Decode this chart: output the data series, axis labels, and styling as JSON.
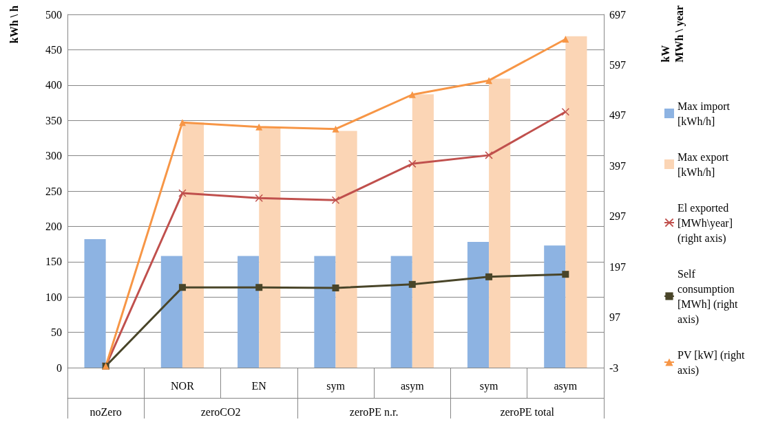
{
  "chart_data": {
    "type": "bar",
    "ylabel": "kWh \\ h",
    "y2label": "kW\nMWh \\ year",
    "categories": [
      null,
      "NOR",
      "EN",
      "sym",
      "asym",
      "sym",
      "asym"
    ],
    "annotations": [
      "noZero",
      "zeroCO2",
      "zeroPE n.r.",
      "zeroPE total"
    ],
    "ylim": [
      0,
      500
    ],
    "yticks": [
      0,
      50,
      100,
      150,
      200,
      250,
      300,
      350,
      400,
      450,
      500
    ],
    "y2lim": [
      -3,
      697
    ],
    "y2ticks": [
      -3,
      97,
      197,
      297,
      397,
      497,
      597,
      697
    ],
    "grid": "y",
    "legend": "right",
    "series": [
      {
        "name": "Max import [kWh/h]",
        "color": "#8db3e2",
        "values": [
          182,
          158,
          158,
          158,
          158,
          178,
          173
        ]
      },
      {
        "name": "Max export [kWh/h]",
        "color": "#fbd5b5",
        "values": [
          null,
          347,
          341,
          335,
          387,
          409,
          469
        ]
      },
      {
        "name": "El exported [MWh\\year] (right axis)",
        "type": "line",
        "axis": "y2",
        "marker": "cross",
        "color": "#c0504d",
        "values": [
          0,
          343,
          333,
          329,
          401,
          418,
          504
        ]
      },
      {
        "name": "Self consumption [MWh] (right axis)",
        "type": "line",
        "axis": "y2",
        "marker": "square",
        "color": "#494529",
        "values": [
          0,
          156,
          156,
          155,
          162,
          177,
          182
        ]
      },
      {
        "name": "PV [kW] (right axis)",
        "type": "line",
        "axis": "y2",
        "marker": "triangle",
        "color": "#f79646",
        "values": [
          0,
          483,
          474,
          470,
          538,
          566,
          648
        ]
      }
    ]
  }
}
